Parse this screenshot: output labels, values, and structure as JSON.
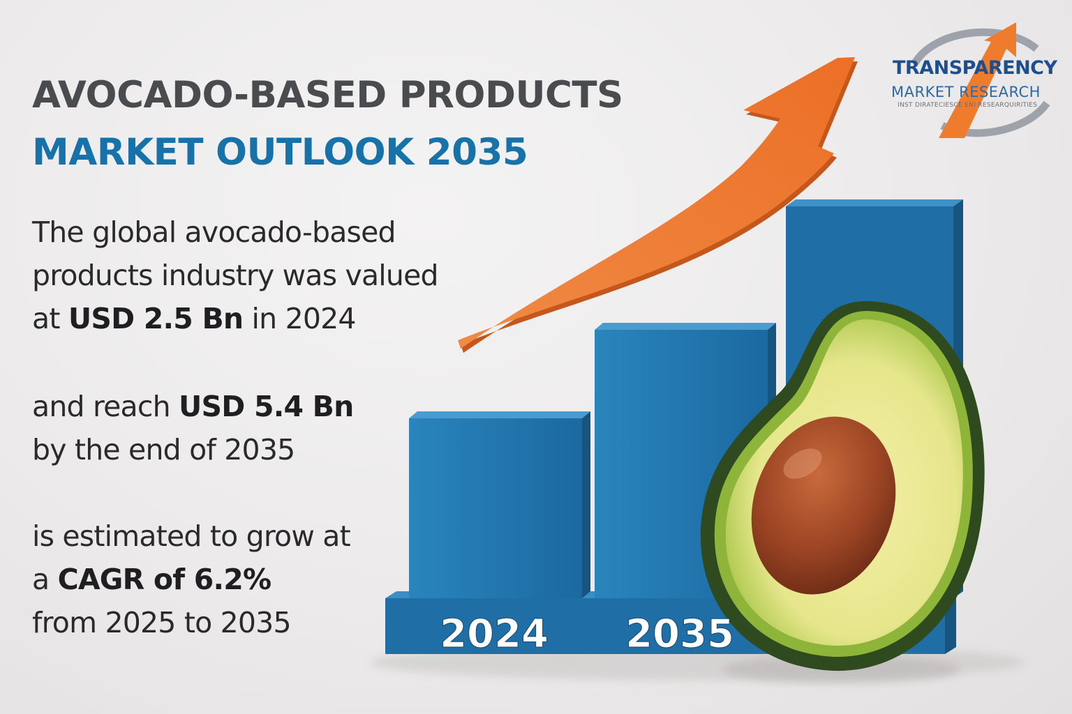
{
  "title_line1": "AVOCADO-BASED PRODUCTS",
  "title_line2": "MARKET OUTLOOK 2035",
  "paragraph1": {
    "line1": "The global avocado-based",
    "line2": "products industry was valued",
    "line3_pre": "at ",
    "line3_bold": "USD 2.5 Bn",
    "line3_post": " in 2024"
  },
  "paragraph2": {
    "line1_pre": "and reach ",
    "line1_bold": "USD 5.4 Bn",
    "line2": "by the end of 2035"
  },
  "paragraph3": {
    "line1": "is estimated to grow at",
    "line2_pre": "a ",
    "line2_bold": "CAGR of 6.2%",
    "line3": "from 2025 to 2035"
  },
  "logo": {
    "name": "TRANSPARENCY",
    "subtitle": "MARKET RESEARCH",
    "tagline": "INST DIRATECIESCE ENI RESEARQUIRITIES"
  },
  "chart_data": {
    "type": "bar",
    "categories": [
      "2024",
      "2035"
    ],
    "values": [
      2.5,
      5.4
    ],
    "ylabel": "",
    "title": "",
    "trend": "increasing"
  },
  "colors": {
    "bar": "#1d6fa5",
    "arrow": "#f07a32",
    "title_accent": "#1672a8",
    "text": "#2a2a2c"
  }
}
